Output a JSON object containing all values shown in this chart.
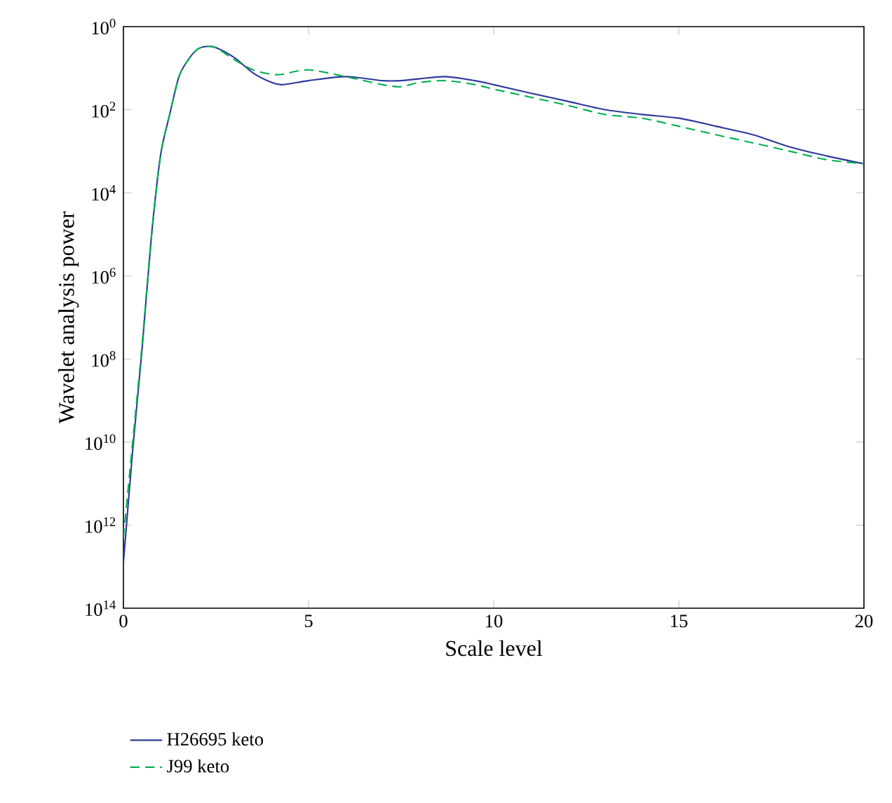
{
  "chart_data": {
    "type": "line",
    "xlabel": "Scale level",
    "ylabel": "Wavelet analysis power",
    "log": "y",
    "xlim": [
      0,
      20
    ],
    "xticks": [
      0,
      5,
      10,
      15,
      20
    ],
    "ylim": [
      100000000000000.0,
      1
    ],
    "yticks": [
      {
        "value": 1,
        "label": "10$^{0}$"
      },
      {
        "value": 100,
        "label": "10$^{2}$"
      },
      {
        "value": 10000.0,
        "label": "10$^{4}$"
      },
      {
        "value": 1000000.0,
        "label": "10$^{6}$"
      },
      {
        "value": 100000000.0,
        "label": "10$^{8}$"
      },
      {
        "value": 10000000000.0,
        "label": "10$^{10}$"
      },
      {
        "value": 1000000000000.0,
        "label": "10$^{12}$"
      },
      {
        "value": 100000000000000.0,
        "label": "10$^{14}$"
      }
    ],
    "x": [
      0,
      0.25,
      0.5,
      0.75,
      1,
      1.25,
      1.5,
      1.75,
      2,
      2.25,
      2.5,
      3,
      3.5,
      4,
      4.3,
      5,
      6,
      7,
      7.5,
      8,
      8.7,
      9.5,
      10,
      11,
      12,
      13,
      14,
      15,
      16,
      17,
      18,
      19,
      20
    ],
    "legend": "bottom left",
    "grid": false,
    "marker": "none",
    "series": [
      {
        "name": "H26695 keto",
        "color": "#2e3a9a",
        "line_style": "solid",
        "values": [
          8000000000000.0,
          16000000000.0,
          63000000.0,
          130000.0,
          1300,
          130,
          16,
          6.3,
          3.5,
          3,
          3.2,
          5.6,
          13,
          22,
          25,
          20,
          16,
          20,
          20,
          18,
          16,
          20,
          25,
          40,
          63,
          100,
          130,
          160,
          250,
          400,
          790,
          1300,
          2000
        ]
      },
      {
        "name": "J99 keto",
        "color": "#00b050",
        "line_style": "dashed",
        "values": [
          2000000000000.0,
          10000000000.0,
          50000000.0,
          130000.0,
          1300,
          130,
          16,
          6.3,
          3.5,
          3,
          3.2,
          6.3,
          11,
          14,
          14,
          11,
          16,
          25,
          28,
          22,
          20,
          25,
          32,
          50,
          79,
          130,
          160,
          250,
          400,
          630,
          1000,
          1600,
          2000
        ]
      }
    ]
  }
}
